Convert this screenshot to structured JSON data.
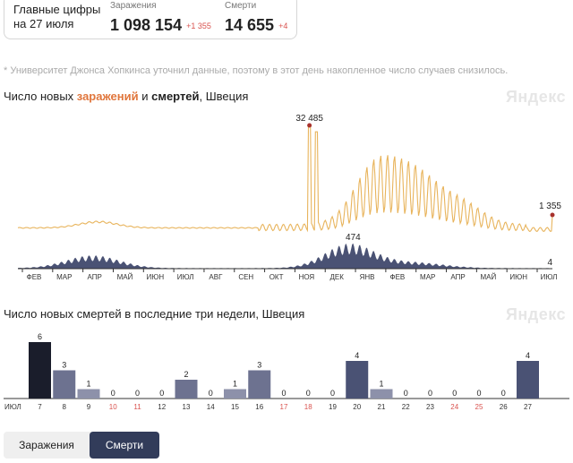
{
  "summary": {
    "title_line1": "Главные цифры",
    "title_line2": "на 27 июля",
    "infections_label": "Заражения",
    "infections_value": "1 098 154",
    "infections_delta": "+1 355",
    "deaths_label": "Смерти",
    "deaths_value": "14 655",
    "deaths_delta": "+4"
  },
  "note": "* Университет Джонса Хопкинса уточнил данные, поэтому в этот день накопленное число случаев снизилось.",
  "chart1": {
    "title_prefix": "Число новых ",
    "title_infections": "заражений",
    "title_and": " и ",
    "title_deaths": "смертей",
    "title_suffix": ", Швеция",
    "brand": "Яндекс"
  },
  "chart2": {
    "title": "Число новых смертей в последние три недели, Швеция",
    "brand": "Яндекс"
  },
  "tabs": {
    "infections": "Заражения",
    "deaths": "Смерти"
  },
  "colors": {
    "infections": "#e8b45c",
    "deaths": "#4a5274",
    "dark": "#1a1d2b",
    "accent": "#e0763c",
    "weekend": "#d9534f",
    "peak_dot": "#a8322d"
  },
  "chart_data": [
    {
      "type": "line",
      "months": [
        "ФЕВ",
        "МАР",
        "АПР",
        "МАЙ",
        "ИЮН",
        "ИЮЛ",
        "АВГ",
        "СЕН",
        "ОКТ",
        "НОЯ",
        "ДЕК",
        "ЯНВ",
        "ФЕВ",
        "МАР",
        "АПР",
        "МАЙ",
        "ИЮН",
        "ИЮЛ"
      ],
      "series": [
        {
          "name": "Заражения",
          "peak_label": "32 485",
          "peak_value": 32485,
          "last_label": "1 355",
          "last_value": 1355
        },
        {
          "name": "Смерти",
          "peak_label": "474",
          "peak_value": 474,
          "last_label": "4",
          "last_value": 4
        }
      ]
    },
    {
      "type": "bar",
      "month_label": "ИЮЛ",
      "categories": [
        "7",
        "8",
        "9",
        "10",
        "11",
        "12",
        "13",
        "14",
        "15",
        "16",
        "17",
        "18",
        "19",
        "20",
        "21",
        "22",
        "23",
        "24",
        "25",
        "26",
        "27"
      ],
      "weekend_days": [
        "10",
        "11",
        "17",
        "18",
        "24",
        "25"
      ],
      "values": [
        6,
        3,
        1,
        0,
        0,
        0,
        2,
        0,
        1,
        3,
        0,
        0,
        0,
        4,
        1,
        0,
        0,
        0,
        0,
        0,
        4
      ],
      "ylim": [
        0,
        6
      ]
    }
  ]
}
